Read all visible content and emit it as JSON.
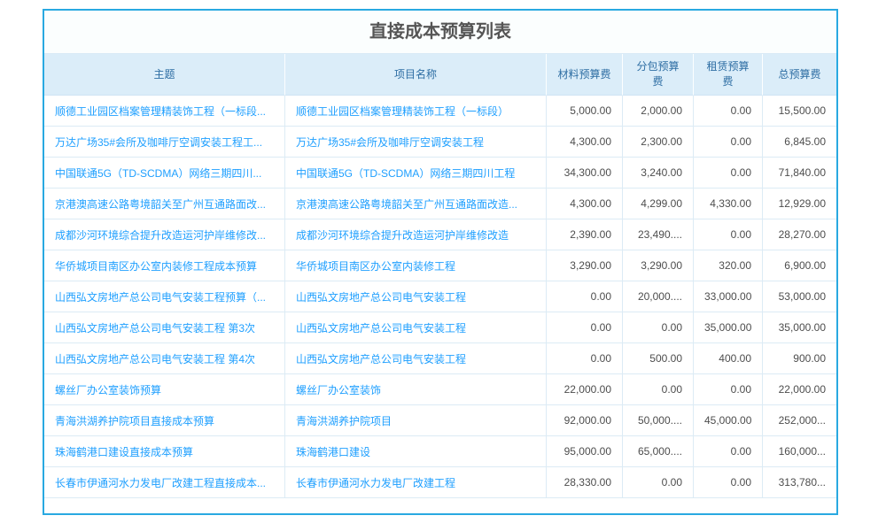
{
  "page": {
    "title": "直接成本预算列表"
  },
  "colors": {
    "accent": "#29a9e1",
    "header_bg": "#dbedf9",
    "header_text": "#2d6da3",
    "link_blue": "#1e9fff",
    "grid_line": "#dcebf5",
    "number_text": "#4d4d4d"
  },
  "table": {
    "columns": [
      {
        "key": "subject",
        "label": "主题"
      },
      {
        "key": "project",
        "label": "项目名称"
      },
      {
        "key": "material",
        "label": "材料预算费"
      },
      {
        "key": "subcontract",
        "label": "分包预算费"
      },
      {
        "key": "lease",
        "label": "租赁预算费"
      },
      {
        "key": "total",
        "label": "总预算费"
      }
    ],
    "rows": [
      {
        "subject": "顺德工业园区档案管理精装饰工程（一标段...",
        "project": "顺德工业园区档案管理精装饰工程（一标段）",
        "material": "5,000.00",
        "subcontract": "2,000.00",
        "lease": "0.00",
        "total": "15,500.00"
      },
      {
        "subject": "万达广场35#会所及咖啡厅空调安装工程工...",
        "project": "万达广场35#会所及咖啡厅空调安装工程",
        "material": "4,300.00",
        "subcontract": "2,300.00",
        "lease": "0.00",
        "total": "6,845.00"
      },
      {
        "subject": "中国联通5G（TD-SCDMA）网络三期四川...",
        "project": "中国联通5G（TD-SCDMA）网络三期四川工程",
        "material": "34,300.00",
        "subcontract": "3,240.00",
        "lease": "0.00",
        "total": "71,840.00"
      },
      {
        "subject": "京港澳高速公路粤境韶关至广州互通路面改...",
        "project": "京港澳高速公路粤境韶关至广州互通路面改造...",
        "material": "4,300.00",
        "subcontract": "4,299.00",
        "lease": "4,330.00",
        "total": "12,929.00"
      },
      {
        "subject": "成都沙河环境综合提升改造运河护岸维修改...",
        "project": "成都沙河环境综合提升改造运河护岸维修改造",
        "material": "2,390.00",
        "subcontract": "23,490....",
        "lease": "0.00",
        "total": "28,270.00"
      },
      {
        "subject": "华侨城项目南区办公室内装修工程成本预算",
        "project": "华侨城项目南区办公室内装修工程",
        "material": "3,290.00",
        "subcontract": "3,290.00",
        "lease": "320.00",
        "total": "6,900.00"
      },
      {
        "subject": "山西弘文房地产总公司电气安装工程预算（...",
        "project": "山西弘文房地产总公司电气安装工程",
        "material": "0.00",
        "subcontract": "20,000....",
        "lease": "33,000.00",
        "total": "53,000.00"
      },
      {
        "subject": "山西弘文房地产总公司电气安装工程 第3次",
        "project": "山西弘文房地产总公司电气安装工程",
        "material": "0.00",
        "subcontract": "0.00",
        "lease": "35,000.00",
        "total": "35,000.00"
      },
      {
        "subject": "山西弘文房地产总公司电气安装工程 第4次",
        "project": "山西弘文房地产总公司电气安装工程",
        "material": "0.00",
        "subcontract": "500.00",
        "lease": "400.00",
        "total": "900.00"
      },
      {
        "subject": "螺丝厂办公室装饰预算",
        "project": "螺丝厂办公室装饰",
        "material": "22,000.00",
        "subcontract": "0.00",
        "lease": "0.00",
        "total": "22,000.00"
      },
      {
        "subject": "青海洪湖养护院项目直接成本预算",
        "project": "青海洪湖养护院项目",
        "material": "92,000.00",
        "subcontract": "50,000....",
        "lease": "45,000.00",
        "total": "252,000..."
      },
      {
        "subject": "珠海鹤港口建设直接成本预算",
        "project": "珠海鹤港口建设",
        "material": "95,000.00",
        "subcontract": "65,000....",
        "lease": "0.00",
        "total": "160,000..."
      },
      {
        "subject": "长春市伊通河水力发电厂改建工程直接成本...",
        "project": "长春市伊通河水力发电厂改建工程",
        "material": "28,330.00",
        "subcontract": "0.00",
        "lease": "0.00",
        "total": "313,780..."
      }
    ]
  }
}
